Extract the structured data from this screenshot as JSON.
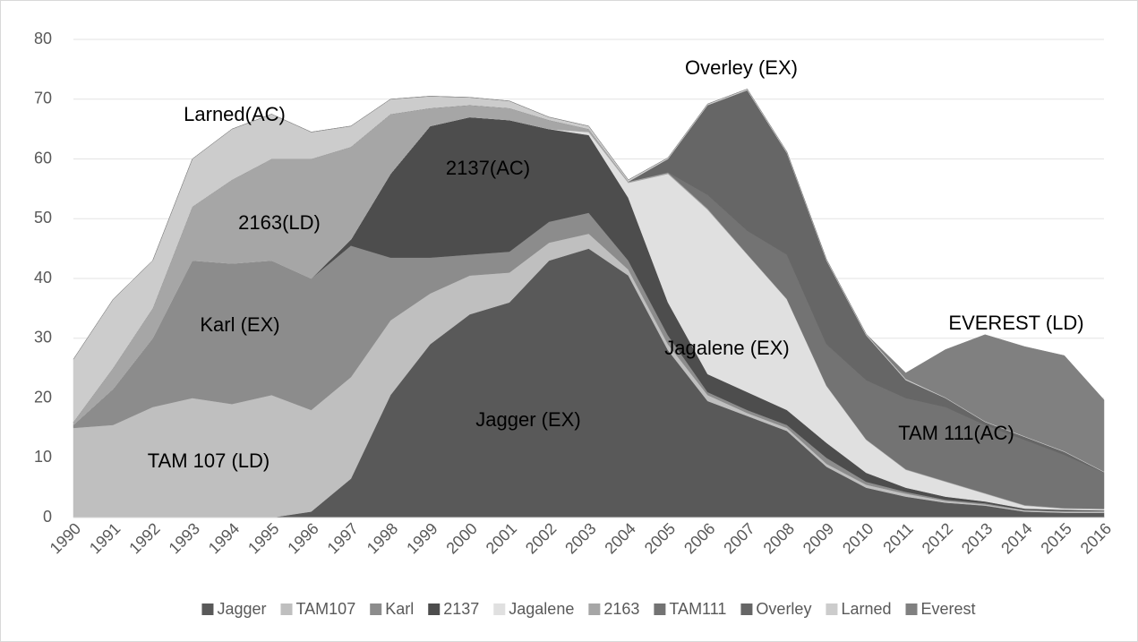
{
  "chart_data": {
    "type": "stacked-area",
    "categories": [
      "1990",
      "1991",
      "1992",
      "1993",
      "1994",
      "1995",
      "1996",
      "1997",
      "1998",
      "1999",
      "2000",
      "2001",
      "2002",
      "2003",
      "2004",
      "2005",
      "2006",
      "2007",
      "2008",
      "2009",
      "2010",
      "2011",
      "2012",
      "2013",
      "2014",
      "2015",
      "2016"
    ],
    "series": [
      {
        "name": "Jagger",
        "color": "#595959",
        "values": [
          0,
          0,
          0,
          0,
          0,
          0,
          1,
          6.5,
          20.5,
          29,
          34,
          36,
          43,
          45,
          40.5,
          28,
          19.5,
          17,
          14.5,
          8.5,
          5,
          3.5,
          2.5,
          2,
          1,
          0.8,
          0.8
        ]
      },
      {
        "name": "TAM107",
        "color": "#bfbfbf",
        "values": [
          15,
          15.5,
          18.5,
          20,
          19,
          20.5,
          17,
          17,
          12.5,
          8.5,
          6.5,
          5,
          3,
          2.5,
          1,
          1,
          1,
          0.5,
          0.5,
          0.5,
          0.5,
          0.5,
          0.3,
          0.2,
          0.2,
          0.2,
          0.2
        ]
      },
      {
        "name": "Karl",
        "color": "#8c8c8c",
        "values": [
          0.5,
          6,
          11.5,
          23,
          23.5,
          22.5,
          22,
          22,
          10.5,
          6,
          3.5,
          3.5,
          3.5,
          3.5,
          1.5,
          1.5,
          0.5,
          0.5,
          0.5,
          1,
          0.5,
          0.3,
          0.2,
          0.2,
          0.1,
          0.1,
          0.1
        ]
      },
      {
        "name": "2137",
        "color": "#4d4d4d",
        "values": [
          0,
          0,
          0,
          0,
          0,
          0,
          0,
          1,
          14,
          22,
          23,
          22,
          15.5,
          13,
          10.5,
          5.5,
          3,
          3,
          2.5,
          2.5,
          1.5,
          0.7,
          0.5,
          0.3,
          0.2,
          0.2,
          0.1
        ]
      },
      {
        "name": "Jagalene",
        "color": "#e0e0e0",
        "values": [
          0,
          0,
          0,
          0,
          0,
          0,
          0,
          0,
          0,
          0,
          0,
          0,
          0,
          0.5,
          2.5,
          21.5,
          27.5,
          23,
          18.5,
          9.5,
          5.5,
          3,
          2.5,
          1.3,
          0.5,
          0.2,
          0.2
        ]
      },
      {
        "name": "2163",
        "color": "#a6a6a6",
        "values": [
          0.5,
          3.5,
          5,
          9,
          14,
          17,
          20,
          15.5,
          10,
          3,
          2,
          2,
          1.5,
          0.5,
          0.2,
          0.2,
          0.2,
          0.1,
          0.1,
          0.1,
          0.1,
          0.1,
          0.1,
          0.1,
          0.1,
          0.1,
          0.1
        ]
      },
      {
        "name": "TAM111",
        "color": "#737373",
        "values": [
          0,
          0,
          0,
          0,
          0,
          0,
          0,
          0,
          0,
          0,
          0,
          0,
          0,
          0,
          0,
          0.1,
          2.3,
          3.9,
          7.4,
          6.9,
          9.9,
          11.9,
          12.4,
          11.4,
          10.9,
          8.9,
          6
        ]
      },
      {
        "name": "Overley",
        "color": "#666666",
        "values": [
          0,
          0,
          0,
          0,
          0,
          0,
          0,
          0,
          0,
          0,
          0,
          0,
          0,
          0,
          0,
          2.2,
          15,
          23.5,
          17,
          14,
          7.5,
          3,
          1.5,
          0.5,
          0.5,
          0.5,
          0.1
        ]
      },
      {
        "name": "Larned",
        "color": "#cccccc",
        "values": [
          10.5,
          11.5,
          8,
          8,
          8.5,
          7.5,
          4.5,
          3.5,
          2.5,
          2,
          1.3,
          1.2,
          0.5,
          0.5,
          0.3,
          0.2,
          0.2,
          0.2,
          0.2,
          0.2,
          0.2,
          0.2,
          0.1,
          0.1,
          0.1,
          0.1,
          0.1
        ]
      },
      {
        "name": "Everest",
        "color": "#808080",
        "values": [
          0,
          0,
          0,
          0,
          0,
          0,
          0,
          0,
          0,
          0,
          0,
          0,
          0,
          0,
          0,
          0,
          0,
          0,
          0,
          0,
          0,
          1,
          8,
          14.5,
          15,
          16,
          12
        ]
      }
    ],
    "annotations": [
      "Larned(AC)",
      "2137(AC)",
      "Overley (EX)",
      "2163(LD)",
      "Jagalene (EX)",
      "Karl (EX)",
      "EVEREST (LD)",
      "Jagger (EX)",
      "TAM 111(AC)",
      "TAM 107 (LD)"
    ],
    "ylim": [
      0,
      80
    ],
    "yticks": [
      0,
      10,
      20,
      30,
      40,
      50,
      60,
      70,
      80
    ],
    "grid": true,
    "legend": "bottom"
  }
}
